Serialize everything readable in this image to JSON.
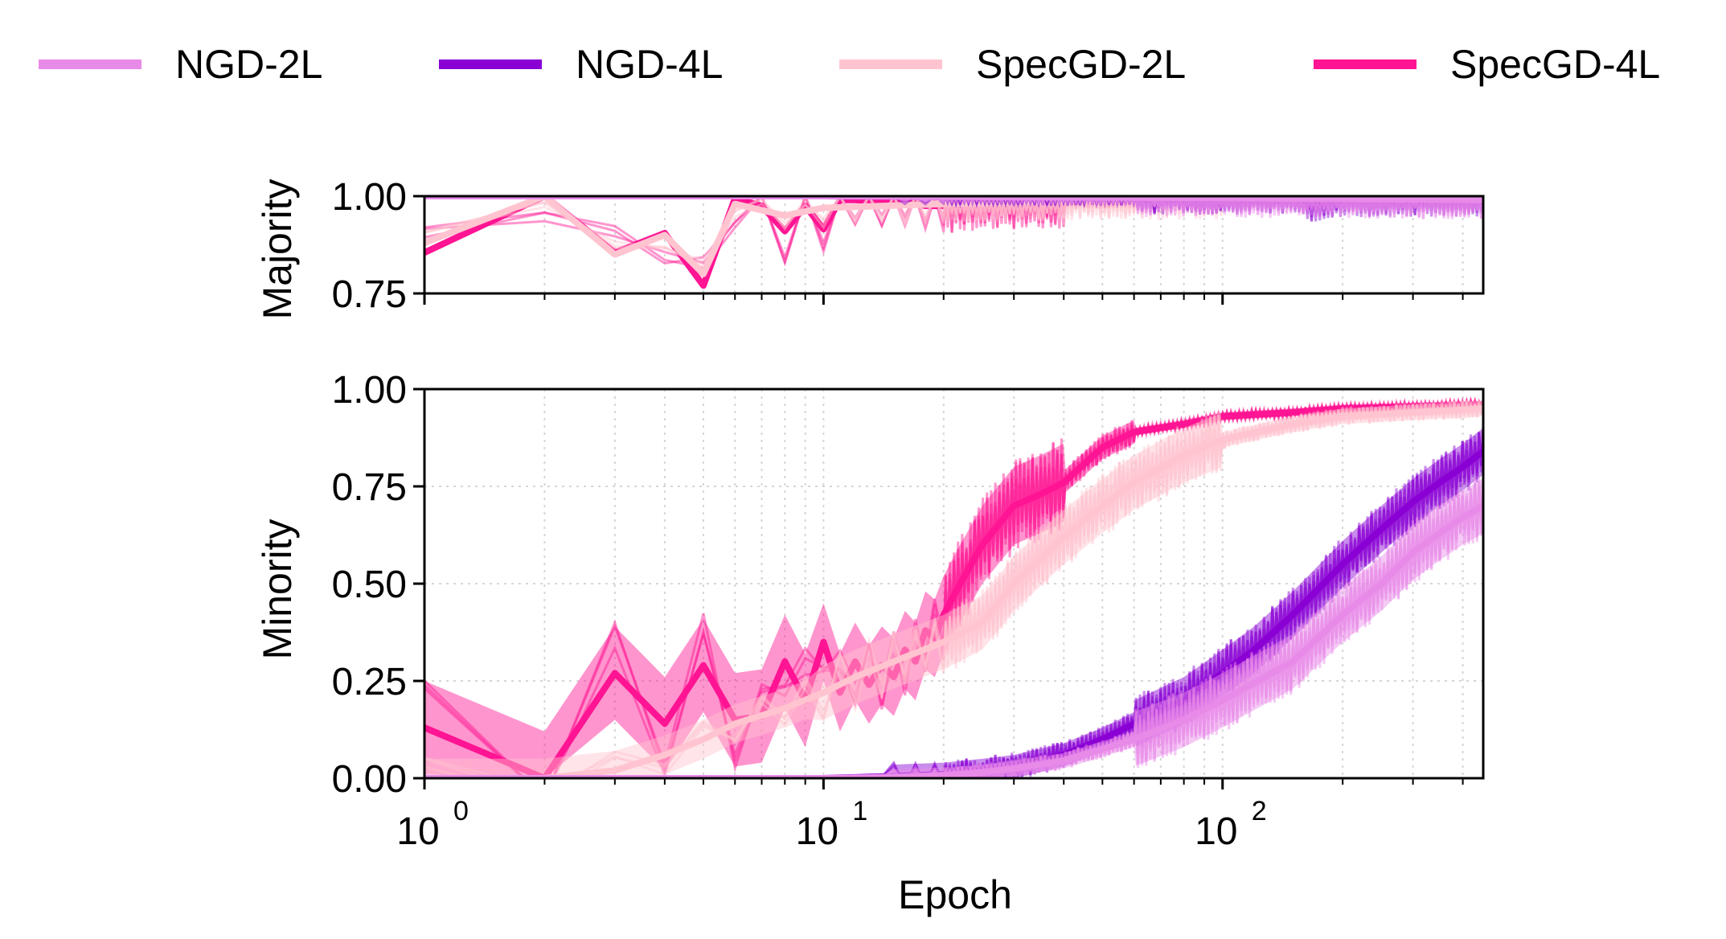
{
  "chart_data": {
    "type": "line",
    "legend": {
      "placement": "top",
      "entries": [
        {
          "label": "NGD-2L",
          "color": "#e88ae8"
        },
        {
          "label": "NGD-4L",
          "color": "#8a00d4"
        },
        {
          "label": "SpecGD-2L",
          "color": "#ffc4cf"
        },
        {
          "label": "SpecGD-4L",
          "color": "#ff1493"
        }
      ]
    },
    "xlabel": "Epoch",
    "xscale": "log",
    "xlim": [
      1,
      450
    ],
    "x_tick_labels": [
      {
        "value": 1,
        "base": "10",
        "exp": "0"
      },
      {
        "value": 10,
        "base": "10",
        "exp": "1"
      },
      {
        "value": 100,
        "base": "10",
        "exp": "2"
      }
    ],
    "grid": true,
    "panels": [
      {
        "ylabel": "Majority",
        "ylim": [
          0.75,
          1.0
        ],
        "y_ticks": [
          "0.75",
          "1.00"
        ],
        "series": [
          {
            "name": "SpecGD-4L",
            "color": "#ff1493",
            "x": [
              1,
              2,
              3,
              4,
              5,
              6,
              7,
              8,
              9,
              10,
              11,
              12,
              14,
              16,
              18,
              20,
              25,
              30,
              50,
              100,
              200,
              450
            ],
            "y": [
              0.855,
              1.0,
              0.855,
              0.905,
              0.77,
              0.995,
              0.975,
              0.91,
              0.975,
              0.915,
              0.99,
              0.99,
              0.985,
              0.99,
              0.975,
              0.975,
              0.985,
              0.985,
              0.99,
              0.99,
              0.99,
              0.99
            ]
          },
          {
            "name": "SpecGD-2L",
            "color": "#ffc4cf",
            "x": [
              1,
              2,
              3,
              4,
              5,
              6,
              8,
              10,
              20,
              50,
              100,
              450
            ],
            "y": [
              0.88,
              1.0,
              0.85,
              0.9,
              0.8,
              0.98,
              0.95,
              0.97,
              0.98,
              0.99,
              0.99,
              0.99
            ]
          },
          {
            "name": "NGD-4L",
            "color": "#8a00d4",
            "x": [
              1,
              10,
              100,
              160,
              165,
              200,
              450
            ],
            "y": [
              1.0,
              1.0,
              0.995,
              0.995,
              0.975,
              0.99,
              0.99
            ]
          },
          {
            "name": "NGD-2L",
            "color": "#e88ae8",
            "x": [
              1,
              10,
              100,
              450
            ],
            "y": [
              1.0,
              1.0,
              0.995,
              0.99
            ]
          }
        ]
      },
      {
        "ylabel": "Minority",
        "ylim": [
          0.0,
          1.0
        ],
        "y_ticks": [
          "0.00",
          "0.25",
          "0.50",
          "0.75",
          "1.00"
        ],
        "series": [
          {
            "name": "SpecGD-4L",
            "color": "#ff1493",
            "x": [
              1,
              2,
              3,
              4,
              5,
              6,
              7,
              8,
              9,
              10,
              11,
              12,
              13,
              14,
              15,
              16,
              17,
              18,
              19,
              20,
              22,
              25,
              30,
              35,
              40,
              50,
              60,
              80,
              100,
              150,
              200,
              300,
              450
            ],
            "y": [
              0.13,
              0.0,
              0.27,
              0.14,
              0.29,
              0.15,
              0.16,
              0.3,
              0.2,
              0.35,
              0.22,
              0.3,
              0.24,
              0.29,
              0.26,
              0.33,
              0.3,
              0.38,
              0.36,
              0.42,
              0.5,
              0.6,
              0.7,
              0.73,
              0.76,
              0.85,
              0.89,
              0.91,
              0.93,
              0.94,
              0.95,
              0.955,
              0.96
            ]
          },
          {
            "name": "SpecGD-2L",
            "color": "#ffc4cf",
            "x": [
              1,
              2,
              3,
              4,
              5,
              6,
              8,
              10,
              12,
              15,
              20,
              25,
              30,
              40,
              50,
              60,
              80,
              100,
              150,
              200,
              300,
              450
            ],
            "y": [
              0.0,
              0.0,
              0.02,
              0.06,
              0.1,
              0.14,
              0.18,
              0.22,
              0.26,
              0.3,
              0.35,
              0.4,
              0.5,
              0.62,
              0.7,
              0.76,
              0.83,
              0.87,
              0.91,
              0.93,
              0.94,
              0.95
            ]
          },
          {
            "name": "NGD-4L",
            "color": "#8a00d4",
            "x": [
              1,
              4,
              10,
              15,
              20,
              25,
              30,
              40,
              50,
              60,
              80,
              100,
              120,
              150,
              200,
              250,
              300,
              350,
              400,
              450
            ],
            "y": [
              0.0,
              0.0,
              0.0,
              0.005,
              0.01,
              0.02,
              0.03,
              0.06,
              0.1,
              0.14,
              0.2,
              0.27,
              0.33,
              0.42,
              0.55,
              0.64,
              0.71,
              0.76,
              0.8,
              0.84
            ]
          },
          {
            "name": "NGD-2L",
            "color": "#e88ae8",
            "x": [
              1,
              4,
              10,
              15,
              20,
              25,
              30,
              40,
              50,
              60,
              80,
              100,
              150,
              200,
              250,
              300,
              350,
              400,
              450
            ],
            "y": [
              0.0,
              0.0,
              0.0,
              0.003,
              0.008,
              0.015,
              0.025,
              0.045,
              0.075,
              0.1,
              0.15,
              0.2,
              0.3,
              0.42,
              0.5,
              0.58,
              0.63,
              0.67,
              0.7
            ]
          }
        ]
      }
    ]
  }
}
